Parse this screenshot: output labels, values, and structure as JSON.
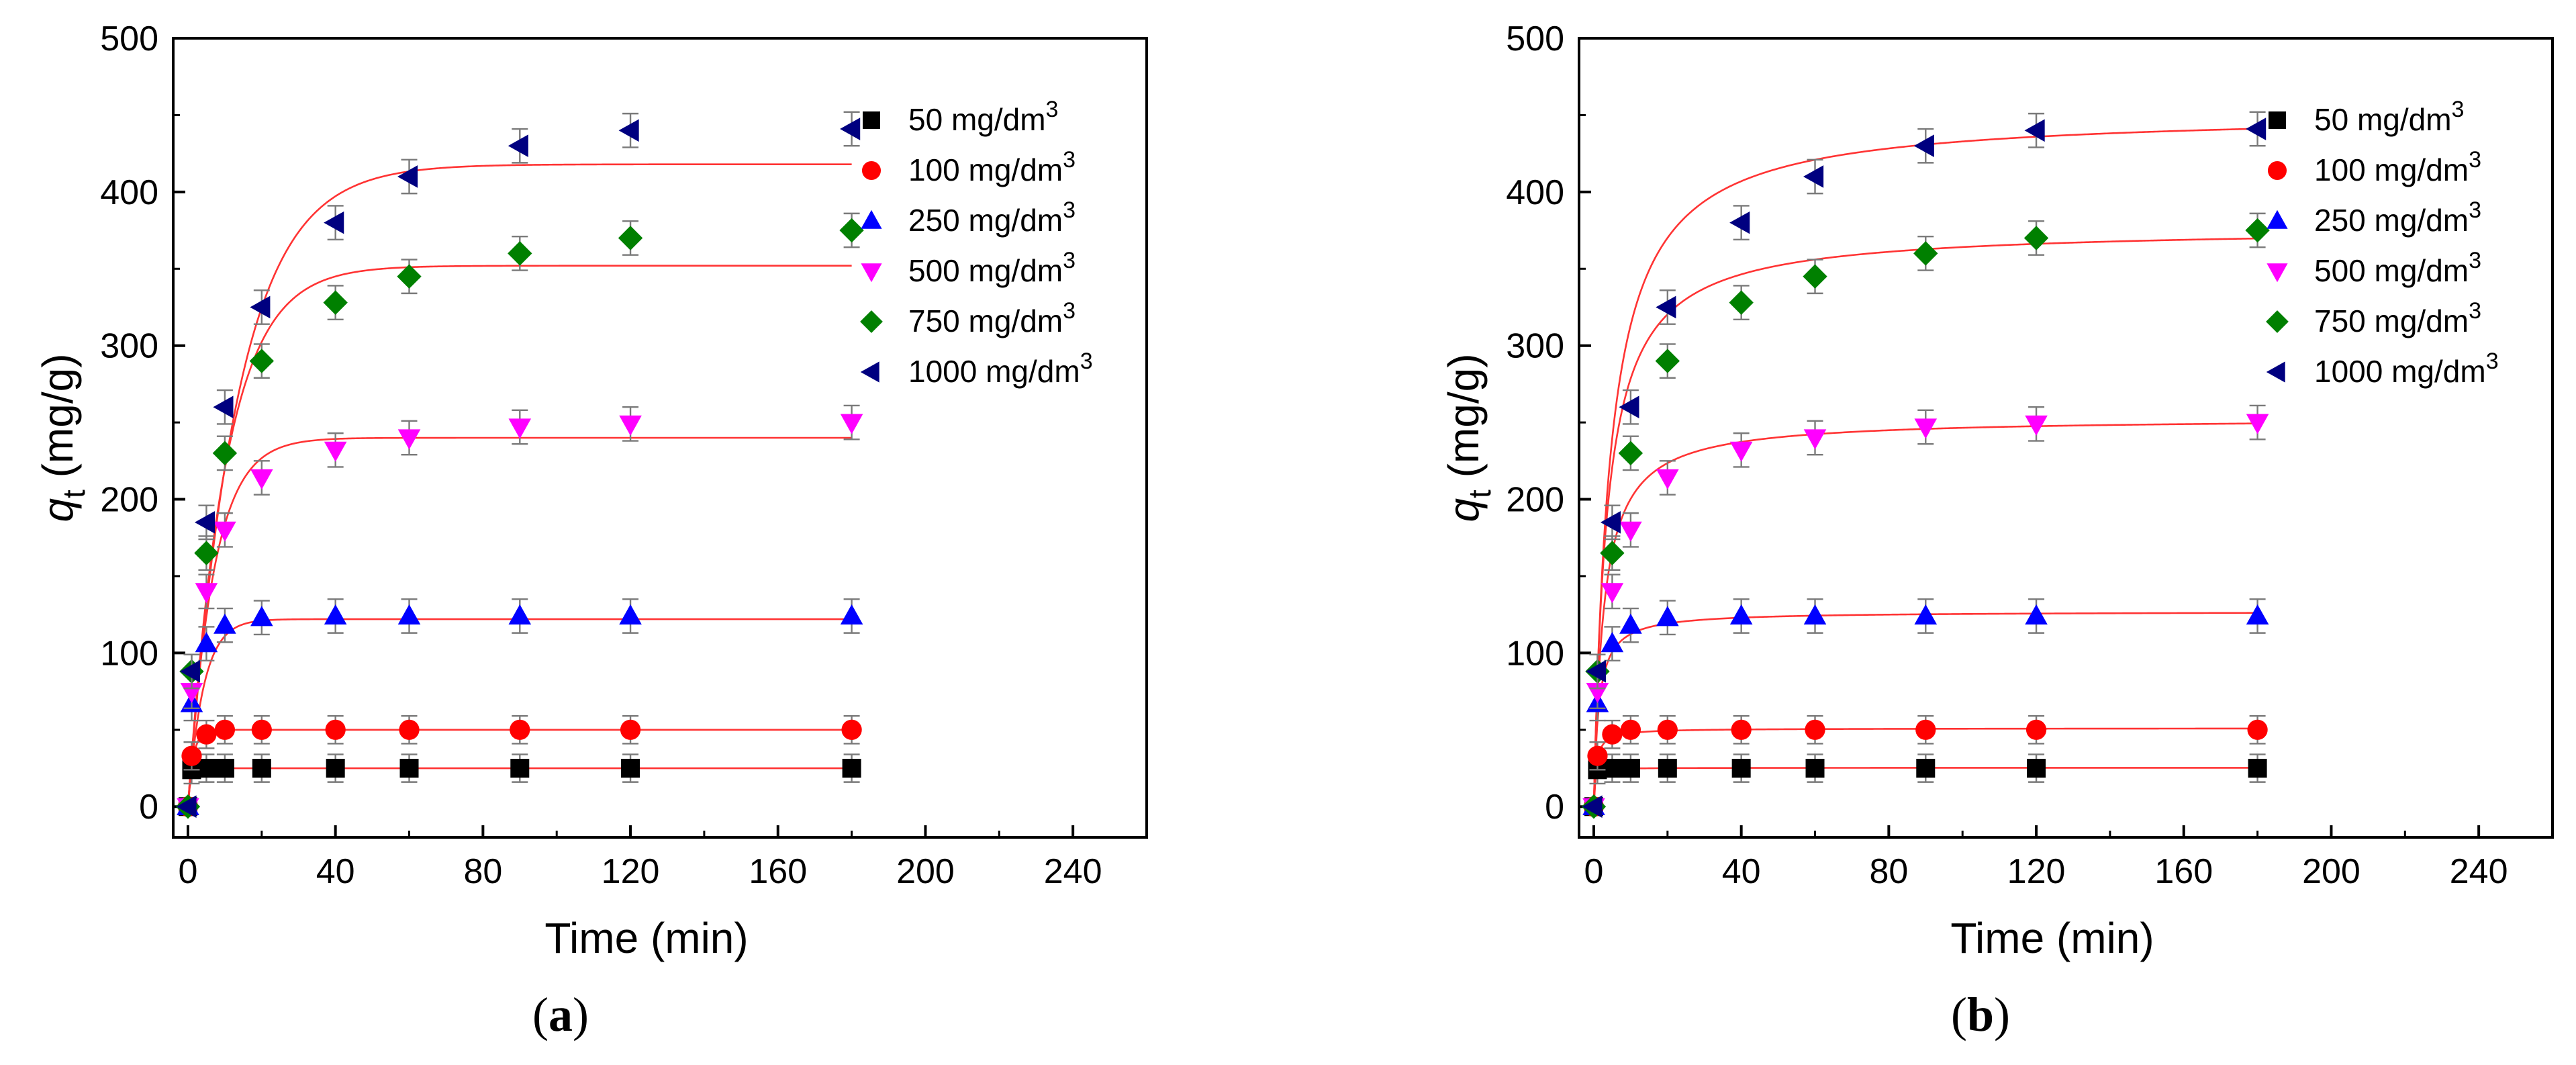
{
  "chart_data": [
    {
      "type": "scatter",
      "panel_label": "a",
      "xlabel": "Time (min)",
      "ylabel_main": "q",
      "ylabel_sub": "t",
      "ylabel_unit": " (mg/g)",
      "xlim": [
        -4,
        260
      ],
      "ylim": [
        -20,
        500
      ],
      "xticks": [
        "0",
        "40",
        "80",
        "120",
        "160",
        "200",
        "240"
      ],
      "yticks": [
        "0",
        "100",
        "200",
        "300",
        "400",
        "500"
      ],
      "legend_position": "top-right",
      "fit_color": "#ff3333",
      "x": [
        0,
        1,
        5,
        10,
        20,
        40,
        60,
        90,
        120,
        180
      ],
      "series": [
        {
          "name": "50 mg/dm",
          "sup": "3",
          "marker": "square",
          "color": "#000000",
          "values": [
            0,
            24,
            25,
            25,
            25,
            25,
            25,
            25,
            25,
            25
          ],
          "err": 9,
          "fit": {
            "model": "pfo",
            "qe": 25,
            "k": 1.5
          }
        },
        {
          "name": "100 mg/dm",
          "sup": "3",
          "marker": "circle",
          "color": "#ff0000",
          "values": [
            0,
            33,
            47,
            50,
            50,
            50,
            50,
            50,
            50,
            50
          ],
          "err": 9,
          "fit": {
            "model": "pfo",
            "qe": 50,
            "k": 0.7
          }
        },
        {
          "name": "250 mg/dm",
          "sup": "3",
          "marker": "triangle-up",
          "color": "#0000ff",
          "values": [
            0,
            67,
            106,
            118,
            123,
            124,
            124,
            124,
            124,
            124
          ],
          "err": 11,
          "fit": {
            "model": "pfo",
            "qe": 122,
            "k": 0.24
          }
        },
        {
          "name": "500 mg/dm",
          "sup": "3",
          "marker": "triangle-down",
          "color": "#ff00ff",
          "values": [
            0,
            75,
            140,
            180,
            214,
            232,
            240,
            247,
            249,
            250
          ],
          "err": 11,
          "fit": {
            "model": "pfo",
            "qe": 240,
            "k": 0.145
          }
        },
        {
          "name": "750 mg/dm",
          "sup": "3",
          "marker": "diamond",
          "color": "#008000",
          "values": [
            0,
            88,
            165,
            230,
            290,
            328,
            345,
            360,
            370,
            375
          ],
          "err": 11,
          "fit": {
            "model": "pfo",
            "qe": 352,
            "k": 0.098
          }
        },
        {
          "name": "1000 mg/dm",
          "sup": "3",
          "marker": "triangle-left",
          "color": "#000080",
          "values": [
            0,
            88,
            185,
            260,
            325,
            380,
            410,
            430,
            440,
            441
          ],
          "err": 11,
          "fit": {
            "model": "pfo",
            "qe": 418,
            "k": 0.075
          }
        }
      ]
    },
    {
      "type": "scatter",
      "panel_label": "b",
      "xlabel": "Time (min)",
      "ylabel_main": "q",
      "ylabel_sub": "t",
      "ylabel_unit": " (mg/g)",
      "xlim": [
        -4,
        260
      ],
      "ylim": [
        -20,
        500
      ],
      "xticks": [
        "0",
        "40",
        "80",
        "120",
        "160",
        "200",
        "240"
      ],
      "yticks": [
        "0",
        "100",
        "200",
        "300",
        "400",
        "500"
      ],
      "legend_position": "top-right",
      "fit_color": "#ff3333",
      "x": [
        0,
        1,
        5,
        10,
        20,
        40,
        60,
        90,
        120,
        180
      ],
      "series": [
        {
          "name": "50 mg/dm",
          "sup": "3",
          "marker": "square",
          "color": "#000000",
          "values": [
            0,
            24,
            25,
            25,
            25,
            25,
            25,
            25,
            25,
            25
          ],
          "err": 9,
          "fit": {
            "model": "pso",
            "qe": 25.3,
            "k": 0.2
          }
        },
        {
          "name": "100 mg/dm",
          "sup": "3",
          "marker": "circle",
          "color": "#ff0000",
          "values": [
            0,
            33,
            47,
            50,
            50,
            50,
            50,
            50,
            50,
            50
          ],
          "err": 9,
          "fit": {
            "model": "pso",
            "qe": 51,
            "k": 0.03
          }
        },
        {
          "name": "250 mg/dm",
          "sup": "3",
          "marker": "triangle-up",
          "color": "#0000ff",
          "values": [
            0,
            67,
            106,
            118,
            123,
            124,
            124,
            124,
            124,
            124
          ],
          "err": 11,
          "fit": {
            "model": "pso",
            "qe": 127,
            "k": 0.006
          }
        },
        {
          "name": "500 mg/dm",
          "sup": "3",
          "marker": "triangle-down",
          "color": "#ff00ff",
          "values": [
            0,
            75,
            140,
            180,
            214,
            232,
            240,
            247,
            249,
            250
          ],
          "err": 11,
          "fit": {
            "model": "pso",
            "qe": 253,
            "k": 0.0015
          }
        },
        {
          "name": "750 mg/dm",
          "sup": "3",
          "marker": "diamond",
          "color": "#008000",
          "values": [
            0,
            88,
            165,
            230,
            290,
            328,
            345,
            360,
            370,
            375
          ],
          "err": 11,
          "fit": {
            "model": "pso",
            "qe": 377,
            "k": 0.00075
          }
        },
        {
          "name": "1000 mg/dm",
          "sup": "3",
          "marker": "triangle-left",
          "color": "#000080",
          "values": [
            0,
            88,
            185,
            260,
            325,
            380,
            410,
            430,
            440,
            441
          ],
          "err": 11,
          "fit": {
            "model": "pso",
            "qe": 452,
            "k": 0.0005
          }
        }
      ]
    }
  ]
}
